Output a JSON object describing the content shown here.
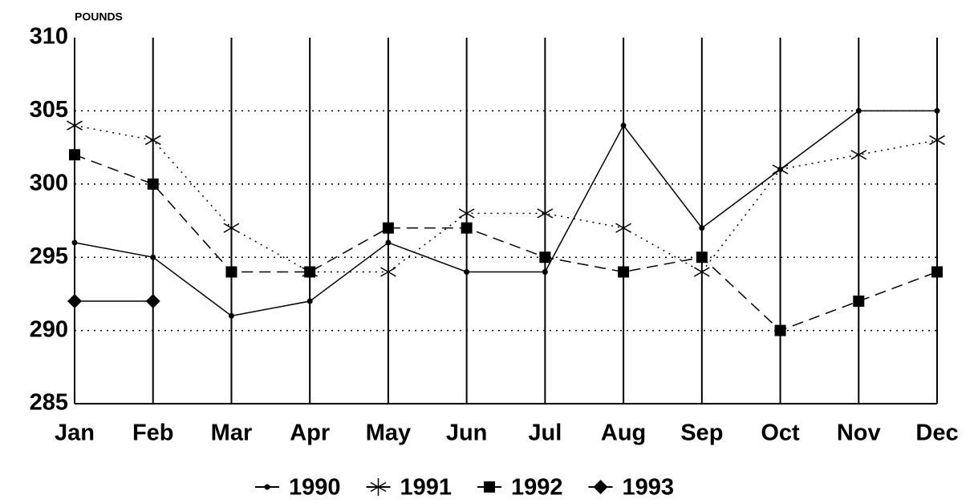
{
  "chart_data": {
    "type": "line",
    "y_axis_label": "POUNDS",
    "categories": [
      "Jan",
      "Feb",
      "Mar",
      "Apr",
      "May",
      "Jun",
      "Jul",
      "Aug",
      "Sep",
      "Oct",
      "Nov",
      "Dec"
    ],
    "series": [
      {
        "name": "1990",
        "color": "#000000",
        "line_style": "solid",
        "marker": "dot",
        "values": [
          296,
          295,
          291,
          292,
          296,
          294,
          294,
          304,
          297,
          301,
          305,
          305
        ]
      },
      {
        "name": "1991",
        "color": "#000000",
        "line_style": "dotted",
        "marker": "asterisk",
        "values": [
          304,
          303,
          297,
          294,
          294,
          298,
          298,
          297,
          294,
          301,
          302,
          303
        ]
      },
      {
        "name": "1992",
        "color": "#000000",
        "line_style": "dashed",
        "marker": "square",
        "values": [
          302,
          300,
          294,
          294,
          297,
          297,
          295,
          294,
          295,
          290,
          292,
          294
        ]
      },
      {
        "name": "1993",
        "color": "#000000",
        "line_style": "solid",
        "marker": "diamond",
        "values": [
          292,
          292,
          null,
          null,
          null,
          null,
          null,
          null,
          null,
          null,
          null,
          null
        ]
      }
    ],
    "ylim": [
      285,
      310
    ],
    "yticks": [
      285,
      290,
      295,
      300,
      305,
      310
    ],
    "grid": true
  }
}
